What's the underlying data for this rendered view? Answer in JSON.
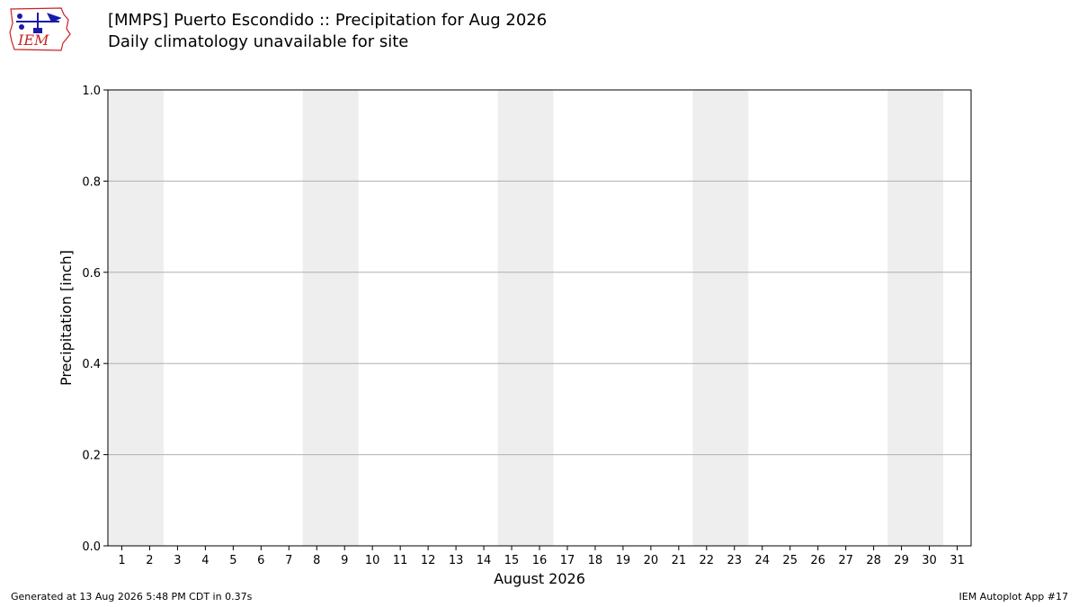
{
  "logo": {
    "text": "IEM",
    "icon": "iem-weather-station-logo",
    "color": "#cc2222"
  },
  "header": {
    "title": "[MMPS] Puerto Escondido :: Precipitation for Aug 2026",
    "subtitle": "Daily climatology unavailable for site"
  },
  "footer": {
    "generated": "Generated at 13 Aug 2026 5:48 PM CDT in 0.37s",
    "app": "IEM Autoplot App #17"
  },
  "chart_data": {
    "type": "bar",
    "title": "[MMPS] Puerto Escondido :: Precipitation for Aug 2026",
    "subtitle": "Daily climatology unavailable for site",
    "xlabel": "August 2026",
    "ylabel": "Precipitation [inch]",
    "x": [
      1,
      2,
      3,
      4,
      5,
      6,
      7,
      8,
      9,
      10,
      11,
      12,
      13,
      14,
      15,
      16,
      17,
      18,
      19,
      20,
      21,
      22,
      23,
      24,
      25,
      26,
      27,
      28,
      29,
      30,
      31
    ],
    "xlim": [
      0.5,
      31.5
    ],
    "ylim": [
      0,
      1.0
    ],
    "yticks": [
      0.0,
      0.2,
      0.4,
      0.6,
      0.8,
      1.0
    ],
    "ytick_labels": [
      "0.0",
      "0.2",
      "0.4",
      "0.6",
      "0.8",
      "1.0"
    ],
    "weekend_bands": [
      [
        1,
        2
      ],
      [
        8,
        9
      ],
      [
        15,
        16
      ],
      [
        22,
        23
      ],
      [
        29,
        30
      ]
    ],
    "series": [],
    "grid": "y",
    "band_color": "#eeeeee",
    "grid_color": "#b0b0b0"
  }
}
